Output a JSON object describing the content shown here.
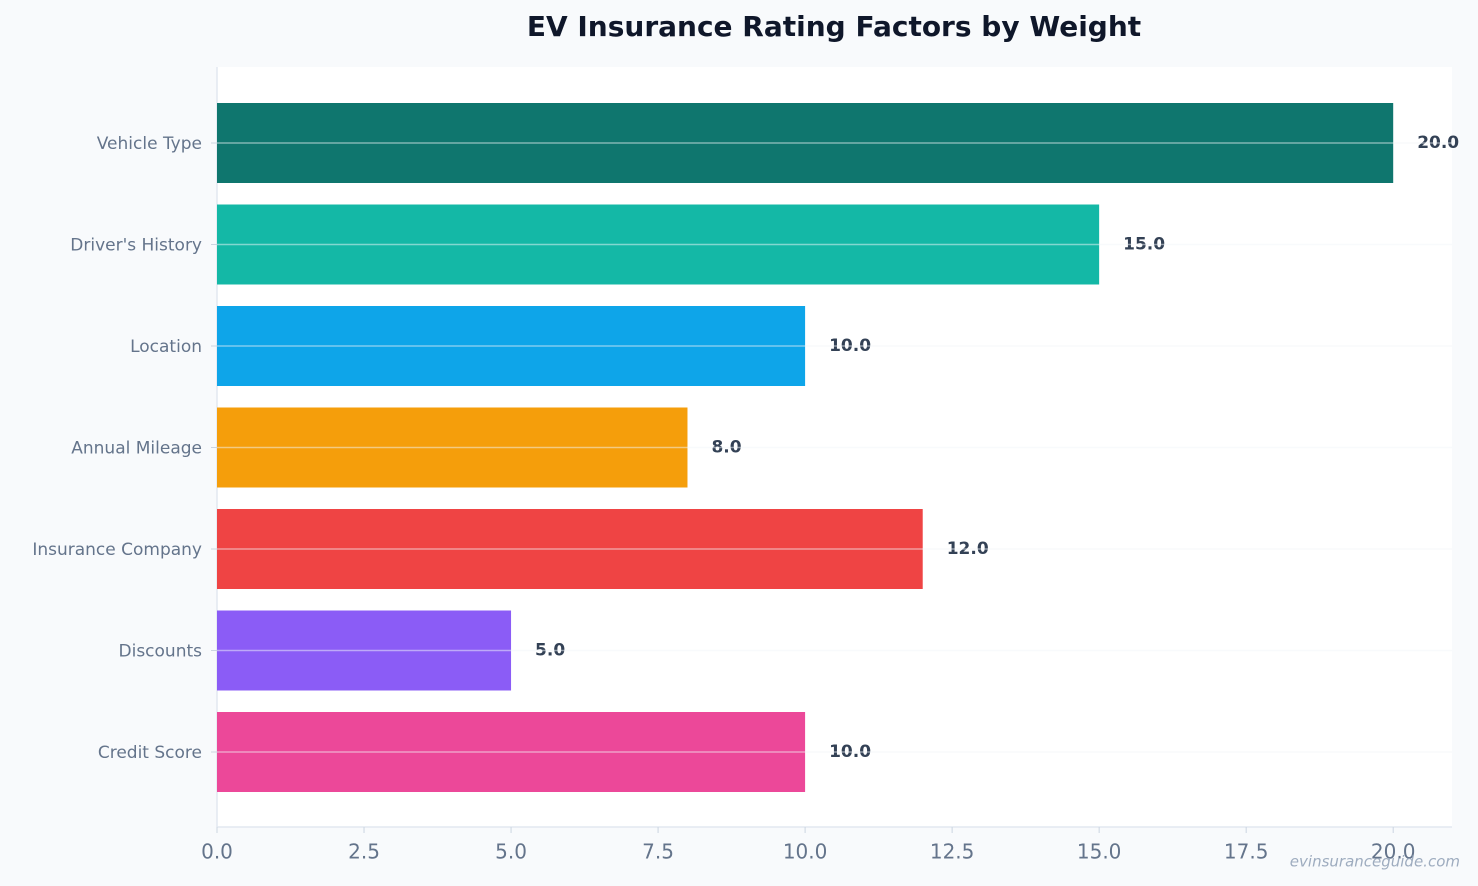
{
  "chart_data": {
    "type": "hbar",
    "title": "EV Insurance Rating Factors by Weight",
    "categories": [
      "Vehicle Type",
      "Driver's History",
      "Location",
      "Annual Mileage",
      "Insurance Company",
      "Discounts",
      "Credit Score"
    ],
    "values": [
      20,
      15,
      10,
      8,
      12,
      5,
      10
    ],
    "value_labels": [
      "20.0",
      "15.0",
      "10.0",
      "8.0",
      "12.0",
      "5.0",
      "10.0"
    ],
    "colors": [
      "#0f766e",
      "#14b8a6",
      "#0ea5e9",
      "#f59e0b",
      "#ef4444",
      "#8b5cf6",
      "#ec4899"
    ],
    "xlim": [
      0,
      21
    ],
    "xticks": [
      {
        "value": 0,
        "label": "0.0"
      },
      {
        "value": 2.5,
        "label": "2.5"
      },
      {
        "value": 5,
        "label": "5.0"
      },
      {
        "value": 7.5,
        "label": "7.5"
      },
      {
        "value": 10,
        "label": "10.0"
      },
      {
        "value": 12.5,
        "label": "12.5"
      },
      {
        "value": 15,
        "label": "15.0"
      },
      {
        "value": 17.5,
        "label": "17.5"
      },
      {
        "value": 20,
        "label": "20.0"
      }
    ],
    "grid": true,
    "watermark": "evinsuranceguide.com"
  }
}
